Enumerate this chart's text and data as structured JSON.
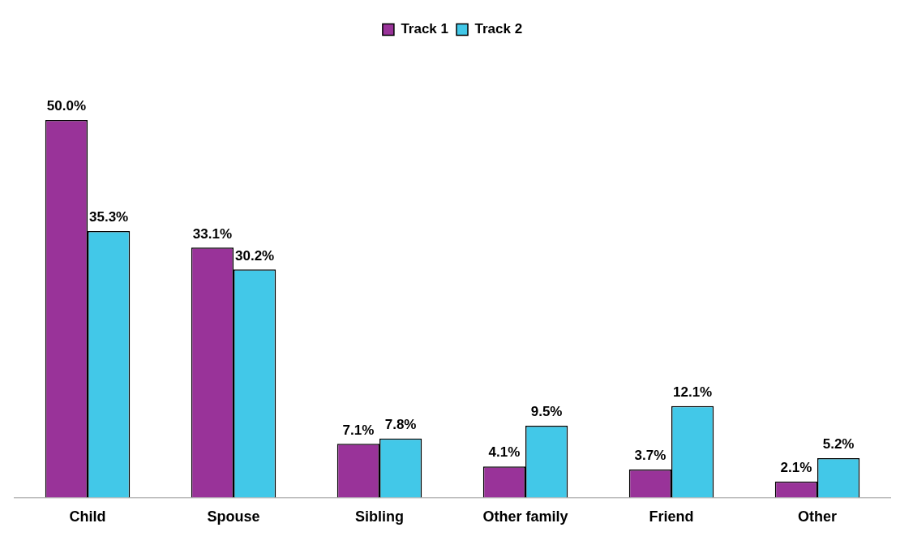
{
  "chart_data": {
    "type": "bar",
    "categories": [
      "Child",
      "Spouse",
      "Sibling",
      "Other family",
      "Friend",
      "Other"
    ],
    "series": [
      {
        "name": "Track 1",
        "color": "#993399",
        "values": [
          50.0,
          33.1,
          7.1,
          4.1,
          3.7,
          2.1
        ],
        "value_labels": [
          "50.0%",
          "33.1%",
          "7.1%",
          "4.1%",
          "3.7%",
          "2.1%"
        ]
      },
      {
        "name": "Track 2",
        "color": "#42c8e8",
        "values": [
          35.3,
          30.2,
          7.8,
          9.5,
          12.1,
          5.2
        ],
        "value_labels": [
          "35.3%",
          "30.2%",
          "7.8%",
          "9.5%",
          "12.1%",
          "5.2%"
        ]
      }
    ],
    "legend": "top",
    "grid": false
  }
}
